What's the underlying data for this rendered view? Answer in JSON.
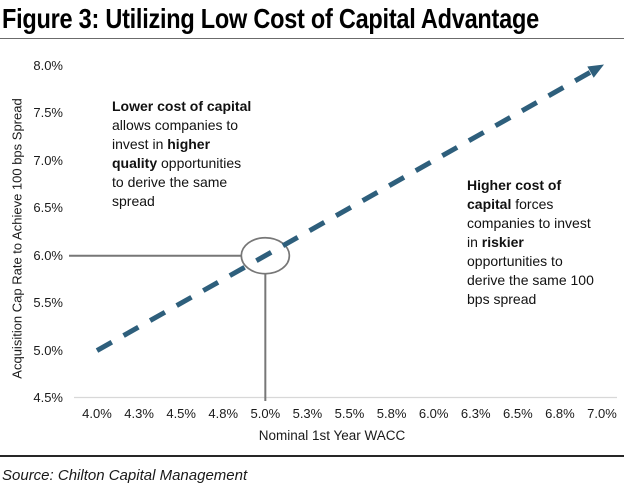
{
  "page": {
    "title": "Figure 3: Utilizing Low Cost of Capital Advantage",
    "source": "Source: Chilton Capital Management"
  },
  "chart_data": {
    "type": "line",
    "title": "Figure 3: Utilizing Low Cost of Capital Advantage",
    "xlabel": "Nominal 1st Year WACC",
    "ylabel": "Acquisition Cap Rate to Achieve 100 bps Spread",
    "xlim": [
      4.0,
      7.0
    ],
    "ylim": [
      4.5,
      8.0
    ],
    "grid": false,
    "legend": "none",
    "x_tick_labels": [
      "4.0%",
      "4.3%",
      "4.5%",
      "4.8%",
      "5.0%",
      "5.3%",
      "5.5%",
      "5.8%",
      "6.0%",
      "6.3%",
      "6.5%",
      "6.8%",
      "7.0%"
    ],
    "x_tick_values": [
      4.0,
      4.25,
      4.5,
      4.75,
      5.0,
      5.25,
      5.5,
      5.75,
      6.0,
      6.25,
      6.5,
      6.75,
      7.0
    ],
    "y_tick_labels": [
      "8.0%",
      "7.5%",
      "7.0%",
      "6.5%",
      "6.0%",
      "5.5%",
      "5.0%",
      "4.5%"
    ],
    "y_tick_values": [
      8.0,
      7.5,
      7.0,
      6.5,
      6.0,
      5.5,
      5.0,
      4.5
    ],
    "series": [
      {
        "name": "cap-rate-vs-wacc-100bps-spread",
        "style": "dashed",
        "arrow_end": true,
        "color": "#2E5F7C",
        "points": [
          [
            4.0,
            5.0
          ],
          [
            7.0,
            8.0
          ]
        ]
      }
    ],
    "highlight_point": {
      "x": 5.0,
      "y": 6.0,
      "marker": "circle-callout",
      "callout_color": "#777777"
    },
    "axis_line_color": "#D8D8D8"
  },
  "annotations": {
    "left": {
      "lines": [
        [
          {
            "t": "Lower cost of capital",
            "b": true
          }
        ],
        [
          {
            "t": "allows companies to",
            "b": false
          }
        ],
        [
          {
            "t": "invest in ",
            "b": false
          },
          {
            "t": "higher",
            "b": true
          }
        ],
        [
          {
            "t": "quality",
            "b": true
          },
          {
            "t": " opportunities",
            "b": false
          }
        ],
        [
          {
            "t": "to derive the same",
            "b": false
          }
        ],
        [
          {
            "t": "spread",
            "b": false
          }
        ]
      ]
    },
    "right": {
      "lines": [
        [
          {
            "t": "Higher cost of",
            "b": true
          }
        ],
        [
          {
            "t": "capital",
            "b": true
          },
          {
            "t": " forces",
            "b": false
          }
        ],
        [
          {
            "t": "companies to invest",
            "b": false
          }
        ],
        [
          {
            "t": "in ",
            "b": false
          },
          {
            "t": "riskier",
            "b": true
          }
        ],
        [
          {
            "t": "opportunities to",
            "b": false
          }
        ],
        [
          {
            "t": "derive the same 100",
            "b": false
          }
        ],
        [
          {
            "t": "bps spread",
            "b": false
          }
        ]
      ]
    }
  }
}
